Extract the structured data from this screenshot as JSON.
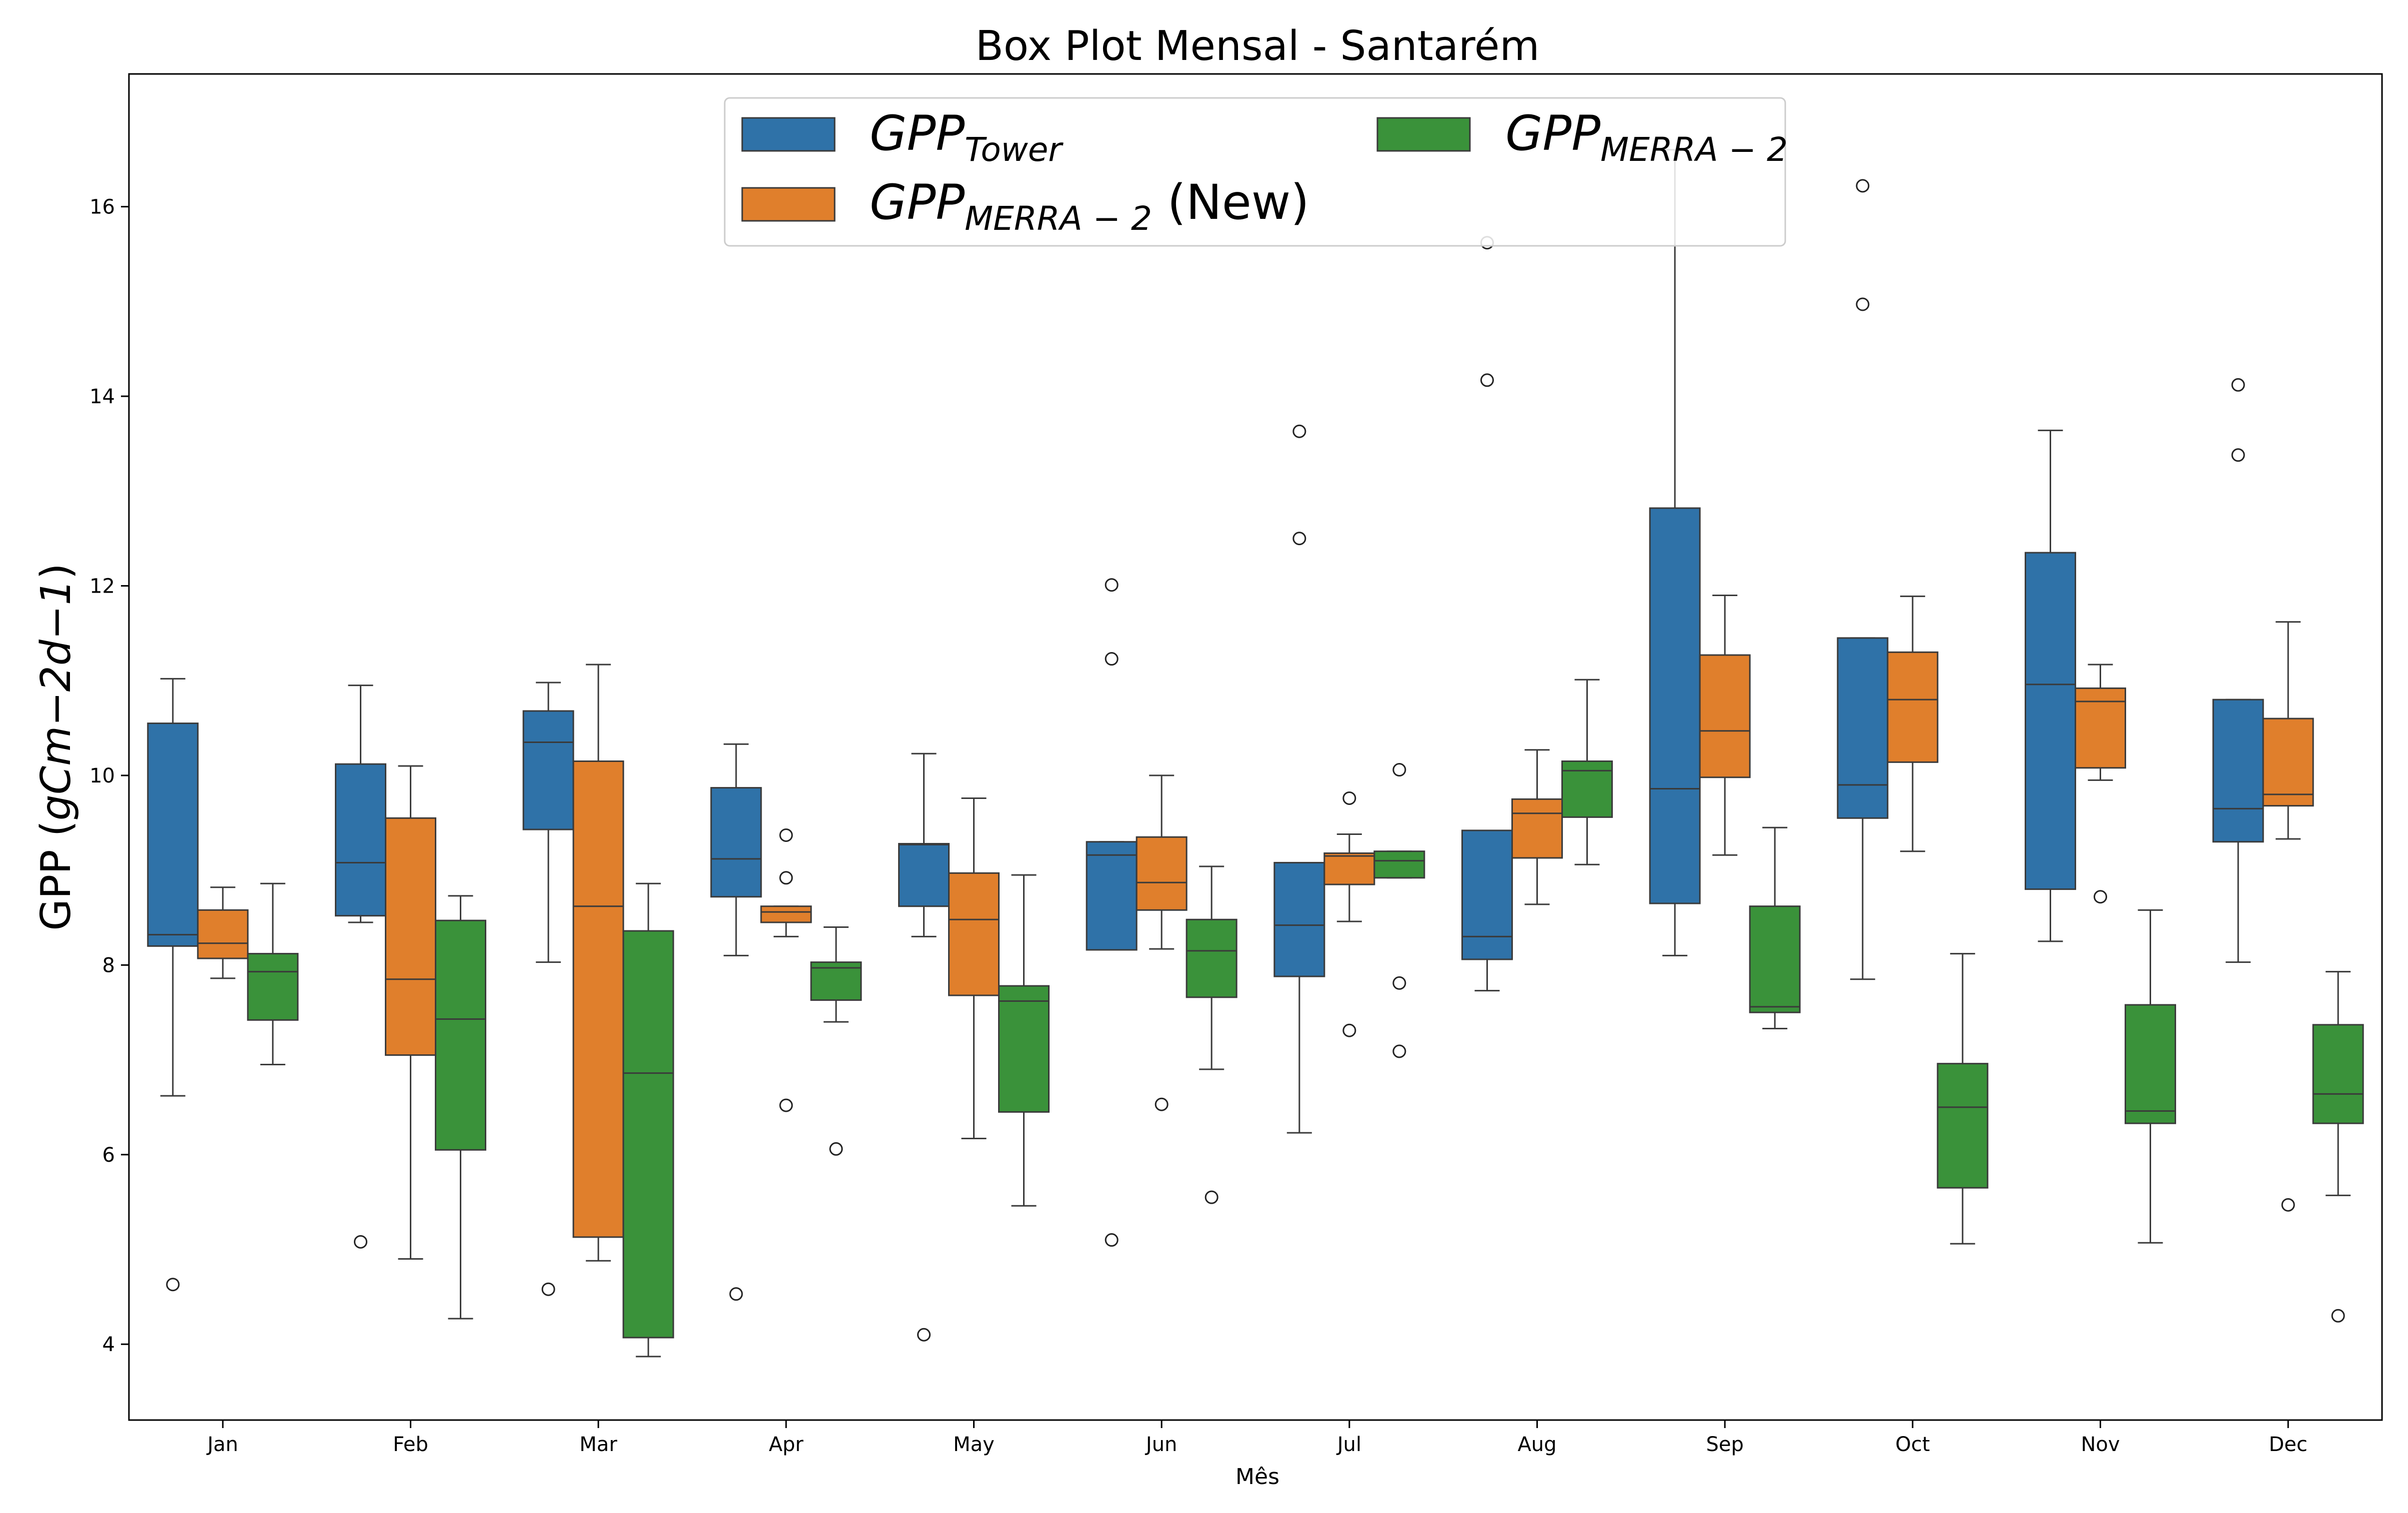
{
  "chart_data": {
    "type": "box",
    "title": "Box Plot Mensal - Santarém",
    "xlabel": "Mês",
    "ylabel": "GPP",
    "ylabel_unit": "gCm−2d−1",
    "ylim": [
      3.2,
      17.4
    ],
    "yticks": [
      4,
      6,
      8,
      10,
      12,
      14,
      16
    ],
    "grid": false,
    "legend_position": "top-center",
    "categories": [
      "Jan",
      "Feb",
      "Mar",
      "Apr",
      "May",
      "Jun",
      "Jul",
      "Aug",
      "Sep",
      "Oct",
      "Nov",
      "Dec"
    ],
    "series": [
      {
        "name": "GPP_Tower",
        "legend_base": "GPP",
        "legend_sub": "Tower",
        "legend_suffix": "",
        "color": "#2f72a8",
        "boxes": [
          {
            "whislo": 6.62,
            "q1": 8.2,
            "med": 8.32,
            "q3": 10.55,
            "whishi": 11.02,
            "fliers": [
              4.63
            ]
          },
          {
            "whislo": 8.45,
            "q1": 8.52,
            "med": 9.08,
            "q3": 10.12,
            "whishi": 10.95,
            "fliers": [
              5.08
            ]
          },
          {
            "whislo": 8.03,
            "q1": 9.43,
            "med": 10.35,
            "q3": 10.68,
            "whishi": 10.98,
            "fliers": [
              4.58
            ]
          },
          {
            "whislo": 8.1,
            "q1": 8.72,
            "med": 9.12,
            "q3": 9.87,
            "whishi": 10.33,
            "fliers": [
              4.53
            ]
          },
          {
            "whislo": 8.3,
            "q1": 8.62,
            "med": 9.27,
            "q3": 9.28,
            "whishi": 10.23,
            "fliers": [
              4.1
            ]
          },
          {
            "whislo": 8.16,
            "q1": 8.16,
            "med": 9.16,
            "q3": 9.3,
            "whishi": 9.3,
            "fliers": [
              12.01,
              11.23,
              5.1
            ]
          },
          {
            "whislo": 6.23,
            "q1": 7.88,
            "med": 8.42,
            "q3": 9.08,
            "whishi": 9.08,
            "fliers": [
              13.63,
              12.5
            ]
          },
          {
            "whislo": 7.73,
            "q1": 8.06,
            "med": 8.3,
            "q3": 9.42,
            "whishi": 9.42,
            "fliers": [
              15.62,
              14.17
            ]
          },
          {
            "whislo": 8.1,
            "q1": 8.65,
            "med": 9.86,
            "q3": 12.82,
            "whishi": 16.6,
            "fliers": []
          },
          {
            "whislo": 7.85,
            "q1": 9.55,
            "med": 9.9,
            "q3": 11.45,
            "whishi": 11.45,
            "fliers": [
              16.22,
              14.97
            ]
          },
          {
            "whislo": 8.25,
            "q1": 8.8,
            "med": 10.96,
            "q3": 12.35,
            "whishi": 13.64,
            "fliers": []
          },
          {
            "whislo": 8.03,
            "q1": 9.3,
            "med": 9.65,
            "q3": 10.8,
            "whishi": 10.8,
            "fliers": [
              14.12,
              13.38
            ]
          }
        ]
      },
      {
        "name": "GPP_MERRA-2 (New)",
        "legend_base": "GPP",
        "legend_sub": "MERRA − 2",
        "legend_suffix": " (New)",
        "color": "#e07f2c",
        "boxes": [
          {
            "whislo": 7.86,
            "q1": 8.07,
            "med": 8.23,
            "q3": 8.58,
            "whishi": 8.82,
            "fliers": []
          },
          {
            "whislo": 4.9,
            "q1": 7.05,
            "med": 7.85,
            "q3": 9.55,
            "whishi": 10.1,
            "fliers": []
          },
          {
            "whislo": 4.88,
            "q1": 5.13,
            "med": 8.62,
            "q3": 10.15,
            "whishi": 11.17,
            "fliers": []
          },
          {
            "whislo": 8.3,
            "q1": 8.45,
            "med": 8.56,
            "q3": 8.62,
            "whishi": 8.62,
            "fliers": [
              9.37,
              8.92,
              6.52
            ]
          },
          {
            "whislo": 6.17,
            "q1": 7.68,
            "med": 8.48,
            "q3": 8.97,
            "whishi": 9.76,
            "fliers": []
          },
          {
            "whislo": 8.17,
            "q1": 8.58,
            "med": 8.87,
            "q3": 9.35,
            "whishi": 10.0,
            "fliers": [
              6.53
            ]
          },
          {
            "whislo": 8.46,
            "q1": 8.85,
            "med": 9.15,
            "q3": 9.18,
            "whishi": 9.38,
            "fliers": [
              9.76,
              7.31
            ]
          },
          {
            "whislo": 8.64,
            "q1": 9.13,
            "med": 9.6,
            "q3": 9.75,
            "whishi": 10.27,
            "fliers": []
          },
          {
            "whislo": 9.16,
            "q1": 9.98,
            "med": 10.47,
            "q3": 11.27,
            "whishi": 11.9,
            "fliers": []
          },
          {
            "whislo": 9.2,
            "q1": 10.14,
            "med": 10.8,
            "q3": 11.3,
            "whishi": 11.89,
            "fliers": []
          },
          {
            "whislo": 9.95,
            "q1": 10.08,
            "med": 10.78,
            "q3": 10.92,
            "whishi": 11.17,
            "fliers": [
              8.72
            ]
          },
          {
            "whislo": 9.33,
            "q1": 9.68,
            "med": 9.8,
            "q3": 10.6,
            "whishi": 11.62,
            "fliers": [
              5.47
            ]
          }
        ]
      },
      {
        "name": "GPP_MERRA-2",
        "legend_base": "GPP",
        "legend_sub": "MERRA − 2",
        "legend_suffix": "",
        "color": "#3a923a",
        "boxes": [
          {
            "whislo": 6.95,
            "q1": 7.42,
            "med": 7.93,
            "q3": 8.12,
            "whishi": 8.86,
            "fliers": []
          },
          {
            "whislo": 4.27,
            "q1": 6.05,
            "med": 7.43,
            "q3": 8.47,
            "whishi": 8.73,
            "fliers": []
          },
          {
            "whislo": 3.87,
            "q1": 4.07,
            "med": 6.86,
            "q3": 8.36,
            "whishi": 8.86,
            "fliers": []
          },
          {
            "whislo": 7.4,
            "q1": 7.63,
            "med": 7.97,
            "q3": 8.03,
            "whishi": 8.4,
            "fliers": [
              6.06
            ]
          },
          {
            "whislo": 5.46,
            "q1": 6.45,
            "med": 7.62,
            "q3": 7.78,
            "whishi": 8.95,
            "fliers": []
          },
          {
            "whislo": 6.9,
            "q1": 7.66,
            "med": 8.15,
            "q3": 8.48,
            "whishi": 9.04,
            "fliers": [
              5.55
            ]
          },
          {
            "whislo": 8.92,
            "q1": 8.92,
            "med": 9.1,
            "q3": 9.2,
            "whishi": 9.2,
            "fliers": [
              10.06,
              7.81,
              7.09
            ]
          },
          {
            "whislo": 9.06,
            "q1": 9.56,
            "med": 10.05,
            "q3": 10.15,
            "whishi": 11.01,
            "fliers": []
          },
          {
            "whislo": 7.33,
            "q1": 7.5,
            "med": 7.56,
            "q3": 8.62,
            "whishi": 9.45,
            "fliers": []
          },
          {
            "whislo": 5.06,
            "q1": 5.65,
            "med": 6.5,
            "q3": 6.96,
            "whishi": 8.12,
            "fliers": []
          },
          {
            "whislo": 5.07,
            "q1": 6.33,
            "med": 6.46,
            "q3": 7.58,
            "whishi": 8.58,
            "fliers": []
          },
          {
            "whislo": 5.57,
            "q1": 6.33,
            "med": 6.64,
            "q3": 7.37,
            "whishi": 7.93,
            "fliers": [
              4.3
            ]
          }
        ]
      }
    ]
  }
}
